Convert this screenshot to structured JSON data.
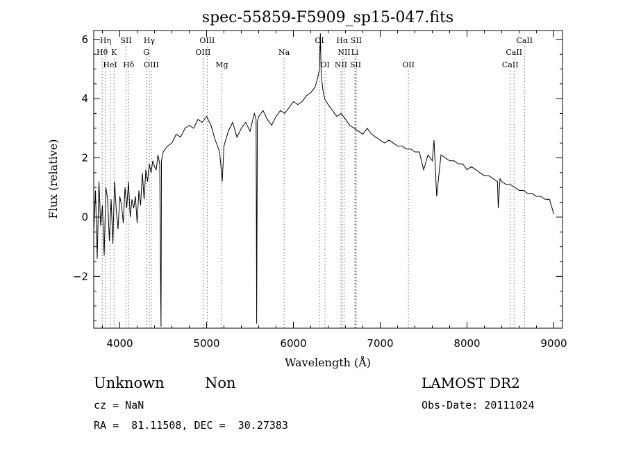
{
  "chart_data": {
    "type": "line",
    "title": "spec-55859-F5909_sp15-047.fits",
    "xlabel": "Wavelength (Å)",
    "ylabel": "Flux (relative)",
    "xlim": [
      3700,
      9100
    ],
    "ylim": [
      -3.75,
      6.3
    ],
    "xticks": [
      4000,
      5000,
      6000,
      7000,
      8000,
      9000
    ],
    "yticks": [
      -2,
      0,
      2,
      4,
      6
    ],
    "grid": false,
    "series": [
      {
        "x": [
          3700,
          3720,
          3740,
          3760,
          3780,
          3800,
          3820,
          3840,
          3860,
          3880,
          3900,
          3920,
          3940,
          3960,
          3980,
          4000,
          4020,
          4040,
          4060,
          4080,
          4100,
          4120,
          4140,
          4160,
          4180,
          4200,
          4220,
          4240,
          4260,
          4280,
          4300,
          4320,
          4340,
          4360,
          4380,
          4400,
          4420,
          4440,
          4460,
          4470,
          4475,
          4480,
          4500,
          4550,
          4600,
          4650,
          4700,
          4750,
          4800,
          4850,
          4900,
          4950,
          5000,
          5050,
          5100,
          5150,
          5180,
          5200,
          5250,
          5300,
          5350,
          5400,
          5450,
          5500,
          5550,
          5570,
          5577,
          5585,
          5600,
          5650,
          5700,
          5750,
          5800,
          5850,
          5900,
          5950,
          6000,
          6050,
          6100,
          6150,
          6200,
          6250,
          6280,
          6300,
          6310,
          6320,
          6340,
          6360,
          6400,
          6450,
          6500,
          6550,
          6600,
          6650,
          6700,
          6750,
          6800,
          6850,
          6900,
          6950,
          7000,
          7050,
          7100,
          7150,
          7200,
          7250,
          7300,
          7350,
          7400,
          7450,
          7500,
          7550,
          7600,
          7620,
          7650,
          7700,
          7750,
          7800,
          7850,
          7900,
          7950,
          8000,
          8050,
          8100,
          8150,
          8200,
          8250,
          8300,
          8350,
          8360,
          8380,
          8400,
          8450,
          8500,
          8550,
          8600,
          8650,
          8700,
          8750,
          8800,
          8850,
          8900,
          8950,
          9000
        ],
        "values": [
          -0.5,
          0.9,
          -1.4,
          1.2,
          -0.3,
          0.4,
          -1.3,
          1.0,
          0.6,
          -0.8,
          0.6,
          -0.9,
          1.2,
          0.2,
          -0.4,
          0.7,
          0.4,
          -0.2,
          1.0,
          0.3,
          1.2,
          0.0,
          0.6,
          0.3,
          0.7,
          -0.2,
          0.9,
          0.4,
          1.5,
          0.6,
          1.6,
          1.2,
          1.8,
          1.5,
          1.9,
          1.7,
          1.6,
          2.1,
          1.8,
          -2.3,
          -3.7,
          1.9,
          2.2,
          2.4,
          2.5,
          2.8,
          2.7,
          3.0,
          3.1,
          3.0,
          3.3,
          3.2,
          3.4,
          3.1,
          2.6,
          2.2,
          1.2,
          2.4,
          2.9,
          3.2,
          2.7,
          3.0,
          3.2,
          2.9,
          3.5,
          3.3,
          -3.6,
          3.2,
          3.4,
          3.6,
          3.3,
          3.1,
          3.4,
          3.6,
          3.5,
          3.7,
          3.9,
          3.8,
          3.9,
          4.1,
          4.2,
          4.4,
          4.7,
          5.0,
          6.2,
          4.8,
          4.3,
          4.0,
          3.8,
          3.6,
          3.4,
          3.5,
          3.3,
          3.1,
          3.0,
          2.9,
          2.8,
          3.0,
          2.8,
          2.7,
          2.6,
          2.5,
          2.6,
          2.5,
          2.4,
          2.4,
          2.3,
          2.3,
          2.2,
          2.2,
          1.6,
          2.1,
          1.9,
          2.6,
          0.7,
          2.1,
          2.0,
          1.9,
          1.9,
          1.8,
          1.8,
          1.6,
          1.7,
          1.6,
          1.5,
          1.4,
          1.4,
          1.3,
          1.2,
          0.3,
          1.3,
          1.2,
          1.1,
          1.1,
          1.0,
          0.9,
          0.9,
          0.8,
          0.8,
          0.7,
          0.7,
          0.6,
          0.6,
          0.1
        ]
      }
    ],
    "lines": [
      {
        "name": "Hη",
        "x": 3835,
        "row": 1
      },
      {
        "name": "Hθ",
        "x": 3797,
        "row": 2
      },
      {
        "name": "K",
        "x": 3934,
        "row": 2
      },
      {
        "name": "HeI",
        "x": 3889,
        "row": 3
      },
      {
        "name": "SII",
        "x": 4072,
        "row": 1
      },
      {
        "name": "Hδ",
        "x": 4102,
        "row": 3
      },
      {
        "name": "Hγ",
        "x": 4340,
        "row": 1
      },
      {
        "name": "G",
        "x": 4305,
        "row": 2
      },
      {
        "name": "OIII",
        "x": 4363,
        "row": 3
      },
      {
        "name": "OIII",
        "x": 5007,
        "row": 1
      },
      {
        "name": "OIII",
        "x": 4959,
        "row": 2
      },
      {
        "name": "Mg",
        "x": 5175,
        "row": 3
      },
      {
        "name": "Na",
        "x": 5893,
        "row": 2
      },
      {
        "name": "OI",
        "x": 6300,
        "row": 1
      },
      {
        "name": "OI",
        "x": 6364,
        "row": 3
      },
      {
        "name": "Hα",
        "x": 6563,
        "row": 1
      },
      {
        "name": "SII",
        "x": 6724,
        "row": 1
      },
      {
        "name": "NII",
        "x": 6584,
        "row": 2
      },
      {
        "name": "Li",
        "x": 6708,
        "row": 2
      },
      {
        "name": "NII",
        "x": 6548,
        "row": 3
      },
      {
        "name": "SII",
        "x": 6716,
        "row": 3
      },
      {
        "name": "OII",
        "x": 7325,
        "row": 3
      },
      {
        "name": "CaII",
        "x": 8662,
        "row": 1
      },
      {
        "name": "CaII",
        "x": 8542,
        "row": 2
      },
      {
        "name": "CaII",
        "x": 8498,
        "row": 3
      }
    ]
  },
  "footer": {
    "obj_class": "Unknown",
    "obj_subclass": "Non",
    "cz": "cz = NaN",
    "radec": "RA =  81.11508, DEC =  30.27383",
    "survey": "LAMOST DR2",
    "obs_date": "Obs-Date: 20111024"
  }
}
